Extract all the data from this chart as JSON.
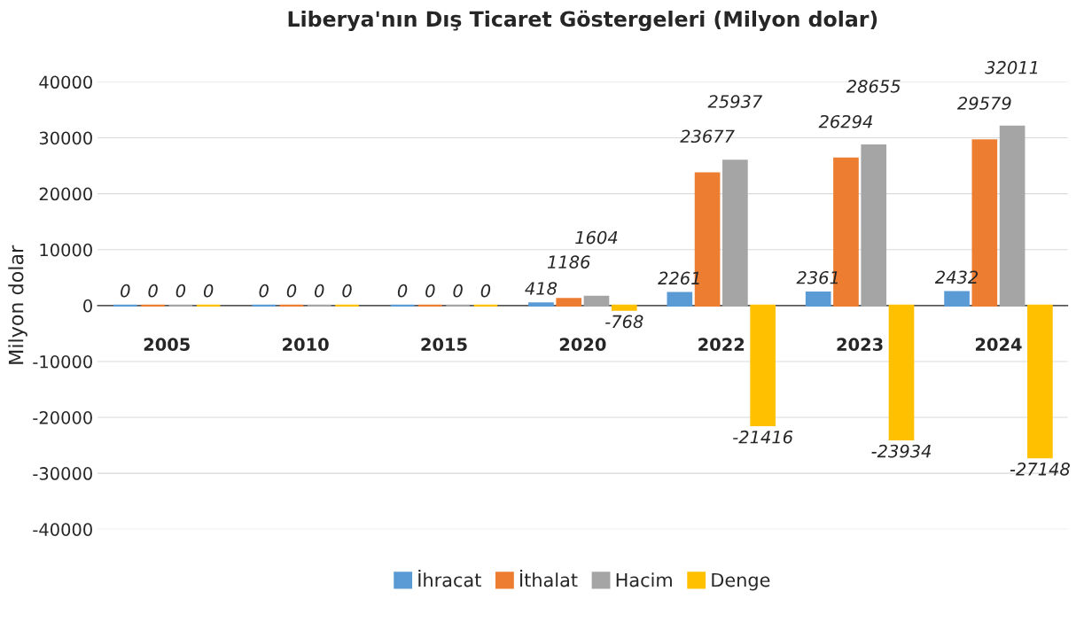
{
  "chart_data": {
    "type": "bar",
    "title": "Liberya'nın Dış Ticaret Göstergeleri (Milyon dolar)",
    "ylabel": "Milyon dolar",
    "categories": [
      "2005",
      "2010",
      "2015",
      "2020",
      "2022",
      "2023",
      "2024"
    ],
    "series": [
      {
        "name": "İhracat",
        "color": "#5b9bd5",
        "values": [
          0,
          0,
          0,
          418,
          2261,
          2361,
          2432
        ]
      },
      {
        "name": "İthalat",
        "color": "#ed7d31",
        "values": [
          0,
          0,
          0,
          1186,
          23677,
          26294,
          29579
        ]
      },
      {
        "name": "Hacim",
        "color": "#a5a5a5",
        "values": [
          0,
          0,
          0,
          1604,
          25937,
          28655,
          32011
        ]
      },
      {
        "name": "Denge",
        "color": "#ffc000",
        "values": [
          0,
          0,
          0,
          -768,
          -21416,
          -23934,
          -27148
        ]
      }
    ],
    "ylim": [
      -40000,
      40000
    ],
    "yticks": [
      -40000,
      -30000,
      -20000,
      -10000,
      0,
      10000,
      20000,
      30000,
      40000
    ],
    "grid": "y",
    "legend": "bottom",
    "data_labels": true
  }
}
